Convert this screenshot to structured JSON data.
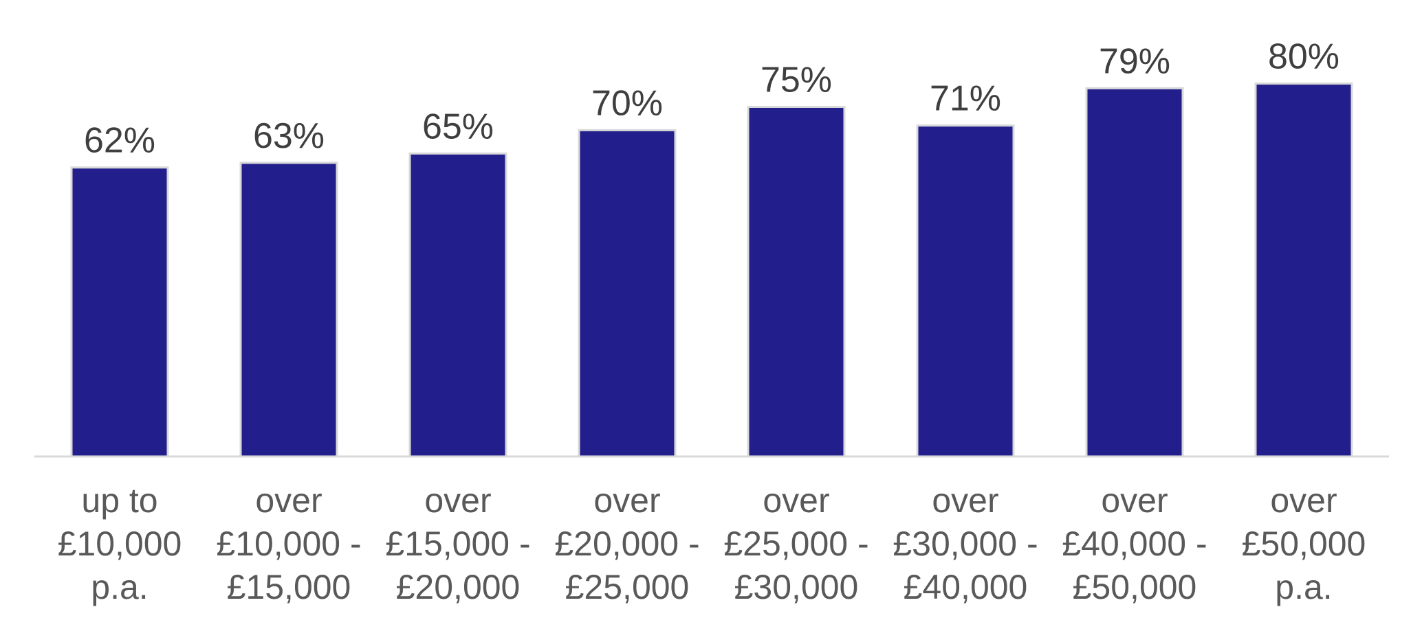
{
  "chart_data": {
    "type": "bar",
    "categories": [
      [
        "up to",
        "£10,000",
        "p.a."
      ],
      [
        "over",
        "£10,000 -",
        "£15,000"
      ],
      [
        "over",
        "£15,000 -",
        "£20,000"
      ],
      [
        "over",
        "£20,000 -",
        "£25,000"
      ],
      [
        "over",
        "£25,000 -",
        "£30,000"
      ],
      [
        "over",
        "£30,000 -",
        "£40,000"
      ],
      [
        "over",
        "£40,000 -",
        "£50,000"
      ],
      [
        "over",
        "£50,000",
        "p.a."
      ]
    ],
    "values": [
      62,
      63,
      65,
      70,
      75,
      71,
      79,
      80
    ],
    "data_labels": [
      "62%",
      "63%",
      "65%",
      "70%",
      "75%",
      "71%",
      "79%",
      "80%"
    ],
    "ylim": [
      0,
      100
    ],
    "grid": false,
    "colors": {
      "bar": "#221f8c",
      "bar_border": "#d9d9d9",
      "axis": "#d9d9d9"
    }
  }
}
